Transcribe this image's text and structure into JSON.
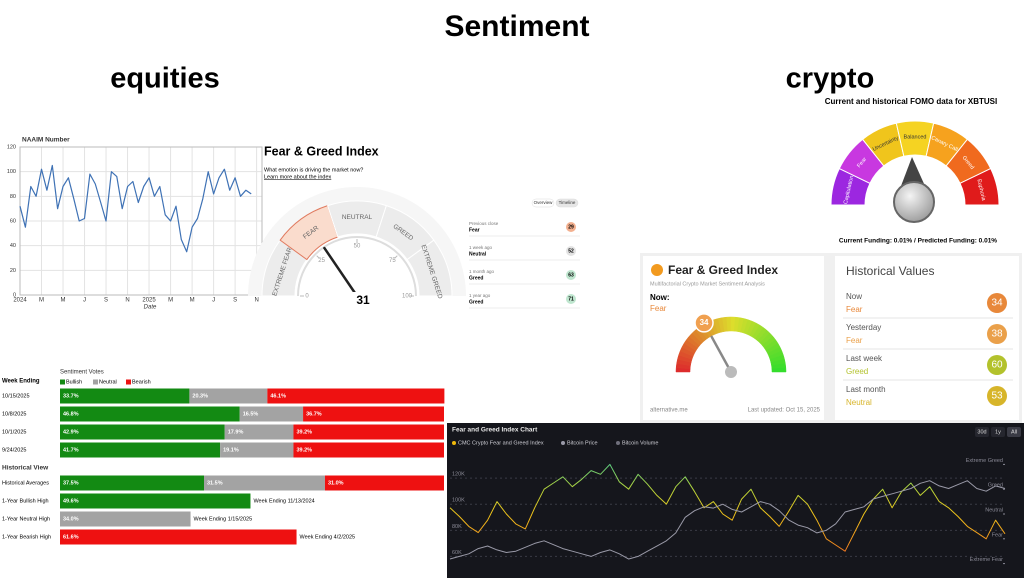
{
  "header": {
    "title": "Sentiment",
    "left_label": "equities",
    "right_label": "crypto"
  },
  "chart_data": [
    {
      "type": "line",
      "title": "NAAIM Number",
      "x_label": "Date",
      "categories": [
        "2024",
        null,
        null,
        null,
        "M",
        null,
        null,
        null,
        "M",
        null,
        null,
        null,
        "J",
        null,
        null,
        null,
        "S",
        null,
        null,
        null,
        "N",
        null,
        null,
        null,
        "2025",
        null,
        null,
        null,
        "M",
        null,
        null,
        null,
        "M",
        null,
        null,
        null,
        "J",
        null,
        null,
        null,
        "S",
        null,
        null,
        null,
        "N",
        null
      ],
      "values": [
        72,
        55,
        88,
        80,
        102,
        85,
        105,
        70,
        88,
        95,
        78,
        60,
        62,
        98,
        90,
        75,
        60,
        100,
        96,
        70,
        88,
        92,
        75,
        88,
        95,
        80,
        88,
        65,
        60,
        72,
        45,
        35,
        55,
        62,
        78,
        100,
        82,
        95,
        102,
        85,
        95,
        80,
        85,
        82,
        null,
        null
      ],
      "color": "#3f72b5",
      "ylim": [
        0,
        120
      ],
      "yticks": [
        0,
        20,
        40,
        60,
        80,
        100,
        120
      ],
      "grid": true
    },
    {
      "type": "gauge",
      "title": "Fear & Greed Index",
      "subtitle": "What emotion is driving the market now?",
      "link": "Learn more about the index",
      "value": 31,
      "ylim": [
        0,
        100
      ],
      "yticks": [
        0,
        25,
        50,
        75,
        100
      ],
      "bands": [
        "EXTREME FEAR",
        "FEAR",
        "NEUTRAL",
        "GREED",
        "EXTREME GREED"
      ],
      "tabs": [
        "Overview",
        "Timeline"
      ],
      "history": [
        {
          "label": "Previous close",
          "status": "Fear",
          "value": 29,
          "color": "#f3b08f"
        },
        {
          "label": "1 week ago",
          "status": "Neutral",
          "value": 52,
          "color": "#e3e3e3"
        },
        {
          "label": "1 month ago",
          "status": "Greed",
          "value": 63,
          "color": "#bfe6cf"
        },
        {
          "label": "1 year ago",
          "status": "Greed",
          "value": 71,
          "color": "#bfe6cf"
        }
      ]
    },
    {
      "type": "hbar_stacked",
      "title": "Sentiment Votes",
      "category_label": "Week Ending",
      "categories": [
        "10/15/2025",
        "10/8/2025",
        "10/1/2025",
        "9/24/2025"
      ],
      "series": [
        {
          "name": "Bullish",
          "color": "#138a13",
          "values": [
            33.7,
            46.8,
            42.9,
            41.7
          ],
          "value_labels": [
            "33.7%",
            "46.8%",
            "42.9%",
            "41.7%"
          ]
        },
        {
          "name": "Neutral",
          "color": "#a3a3a3",
          "values": [
            20.3,
            16.5,
            17.9,
            19.1
          ],
          "value_labels": [
            "20.3%",
            "16.5%",
            "17.9%",
            "19.1%"
          ]
        },
        {
          "name": "Bearish",
          "color": "#ee1111",
          "values": [
            46.1,
            36.7,
            39.2,
            39.2
          ],
          "value_labels": [
            "46.1%",
            "36.7%",
            "39.2%",
            "39.2%"
          ]
        }
      ]
    },
    {
      "type": "hbar_stacked",
      "title": "Historical View",
      "categories": [
        "Historical Averages",
        "1-Year Bullish High",
        "1-Year Neutral High",
        "1-Year Bearish High"
      ],
      "series": [
        {
          "color": "#138a13",
          "values": [
            37.5,
            49.6,
            null,
            null
          ],
          "value_labels": [
            "37.5%",
            "49.6%",
            null,
            null
          ]
        },
        {
          "color": "#a3a3a3",
          "values": [
            31.5,
            null,
            34.0,
            null
          ],
          "value_labels": [
            "31.5%",
            null,
            "34.0%",
            null
          ]
        },
        {
          "color": "#ee1111",
          "values": [
            31.0,
            null,
            null,
            61.6
          ],
          "value_labels": [
            "31.0%",
            null,
            null,
            "61.6%"
          ]
        }
      ],
      "notes": [
        null,
        "Week Ending 11/13/2024",
        "Week Ending 1/15/2025",
        "Week Ending 4/2/2025"
      ]
    },
    {
      "type": "gauge",
      "title": "Fear & Greed Index",
      "subtitle": "Multifactorial Crypto Market Sentiment Analysis",
      "now_label": "Now:",
      "status": "Fear",
      "value": 34,
      "ylim": [
        0,
        100
      ],
      "source": "alternative.me",
      "updated": "Last updated: Oct 15, 2025"
    },
    {
      "type": "line",
      "title": "Fear and Greed Index Chart",
      "buttons": [
        "30d",
        "1y",
        "All"
      ],
      "series": [
        {
          "name": "CMC Crypto Fear and Greed Index",
          "color": "#f0b90b",
          "axis": "y2",
          "values": [
            55,
            48,
            40,
            35,
            45,
            60,
            50,
            42,
            38,
            55,
            70,
            75,
            80,
            72,
            78,
            85,
            82,
            90,
            76,
            70,
            82,
            74,
            65,
            58,
            72,
            80,
            68,
            55,
            60,
            50,
            45,
            62,
            70,
            55,
            48,
            40,
            52,
            65,
            58,
            45,
            30,
            25,
            20,
            35,
            50,
            62,
            70,
            55,
            68,
            75,
            65,
            72,
            60,
            55,
            48,
            40,
            35,
            30,
            45,
            34
          ]
        },
        {
          "name": "Bitcoin Price",
          "color": "#9a9aa8",
          "values": [
            58000,
            60000,
            62000,
            66000,
            68000,
            65000,
            63000,
            64000,
            67000,
            70000,
            72000,
            69000,
            66000,
            64000,
            62000,
            60000,
            63000,
            65000,
            62000,
            58000,
            60000,
            64000,
            68000,
            72000,
            78000,
            90000,
            95000,
            98000,
            97000,
            100000,
            96000,
            94000,
            98000,
            102000,
            100000,
            95000,
            88000,
            84000,
            82000,
            78000,
            80000,
            85000,
            94000,
            96000,
            98000,
            104000,
            106000,
            108000,
            110000,
            112000,
            116000,
            118000,
            114000,
            112000,
            115000,
            118000,
            112000,
            110000,
            114000,
            112000
          ]
        },
        {
          "name": "Bitcoin Volume",
          "color": "#6f6f7c"
        }
      ],
      "ylim": [
        45000,
        140000
      ],
      "yticks": [
        {
          "value": 60000,
          "label": "60K"
        },
        {
          "value": 80000,
          "label": "80K"
        },
        {
          "value": 100000,
          "label": "100K"
        },
        {
          "value": 120000,
          "label": "120K"
        }
      ],
      "y2lim": [
        0,
        100
      ],
      "y2ticks": [
        {
          "value": 10,
          "label": "Extreme Fear"
        },
        {
          "value": 30,
          "label": "Fear"
        },
        {
          "value": 50,
          "label": "Neutral"
        },
        {
          "value": 70,
          "label": "Greed"
        },
        {
          "value": 90,
          "label": "Extreme Greed"
        }
      ],
      "grid": true
    }
  ],
  "fomo": {
    "title": "Current and historical FOMO data for XBTUSI",
    "bands": [
      "Capitulation",
      "Fear",
      "Uncertainty",
      "Balanced",
      "Canary Call",
      "Greed",
      "Euphoria"
    ],
    "colors": [
      "#9c27e0",
      "#c838e0",
      "#f0c51c",
      "#f5d322",
      "#f6a21e",
      "#f06a1e",
      "#e01b1b"
    ],
    "footer": "Current Funding: 0.01% / Predicted Funding: 0.01%"
  },
  "historical_values": {
    "title": "Historical Values",
    "rows": [
      {
        "label": "Now",
        "status": "Fear",
        "value": 34,
        "color": "#e8883a"
      },
      {
        "label": "Yesterday",
        "status": "Fear",
        "value": 38,
        "color": "#eaa04a"
      },
      {
        "label": "Last week",
        "status": "Greed",
        "value": 60,
        "color": "#b3c22c"
      },
      {
        "label": "Last month",
        "status": "Neutral",
        "value": 53,
        "color": "#d7b52a"
      }
    ]
  }
}
